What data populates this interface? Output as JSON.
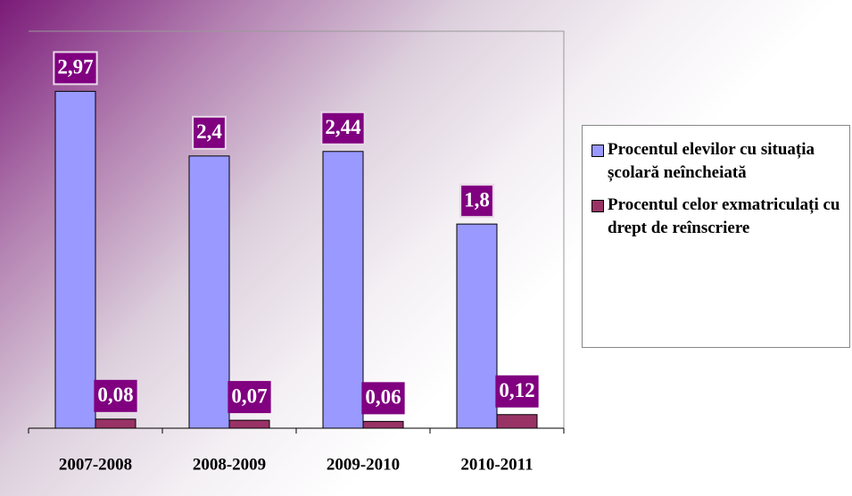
{
  "chart_data": {
    "type": "bar",
    "categories": [
      "2007-2008",
      "2008-2009",
      "2009-2010",
      "2010-2011"
    ],
    "series": [
      {
        "name": "Procentul elevilor cu situația școlară neîncheiată",
        "color": "#9999ff",
        "values": [
          2.97,
          2.4,
          2.44,
          1.8
        ],
        "value_labels": [
          "2,97",
          "2,4",
          "2,44",
          "1,8"
        ]
      },
      {
        "name": "Procentul celor exmatriculați cu drept de reînscriere",
        "color": "#993366",
        "values": [
          0.08,
          0.07,
          0.06,
          0.12
        ],
        "value_labels": [
          "0,08",
          "0,07",
          "0,06",
          "0,12"
        ]
      }
    ],
    "ylim": [
      0,
      3.5
    ],
    "legend": "right"
  }
}
